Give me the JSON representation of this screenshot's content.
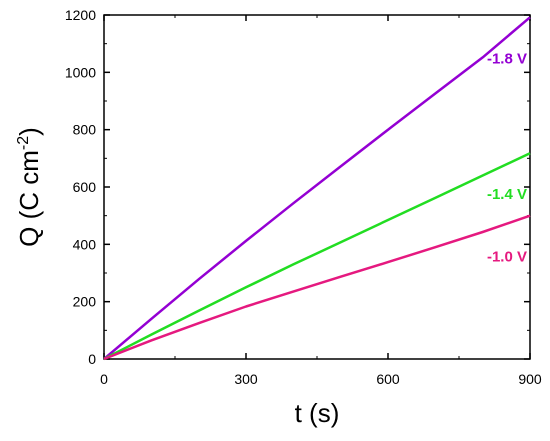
{
  "chart_data": {
    "type": "line",
    "xlabel": "t (s)",
    "ylabel_main": "Q (C cm",
    "ylabel_sup": "-2",
    "ylabel_close": ")",
    "xlim": [
      0,
      900
    ],
    "ylim": [
      0,
      1200
    ],
    "xticks": [
      "0",
      "300",
      "600",
      "900"
    ],
    "yticks": [
      "0",
      "200",
      "400",
      "600",
      "800",
      "1000",
      "1200"
    ],
    "grid": false,
    "series": [
      {
        "name": "-1.8 V",
        "color": "#9400D3",
        "x": [
          0,
          100,
          200,
          300,
          400,
          500,
          600,
          700,
          800,
          900
        ],
        "y": [
          0,
          140,
          278,
          412,
          543,
          672,
          800,
          926,
          1052,
          1192
        ]
      },
      {
        "name": "-1.4 V",
        "color": "#22DD22",
        "x": [
          0,
          100,
          200,
          300,
          400,
          500,
          600,
          700,
          800,
          900
        ],
        "y": [
          0,
          85,
          168,
          250,
          330,
          407,
          485,
          562,
          640,
          718
        ]
      },
      {
        "name": "-1.0 V",
        "color": "#E5197F",
        "x": [
          0,
          100,
          200,
          300,
          400,
          500,
          600,
          700,
          800,
          900
        ],
        "y": [
          0,
          65,
          125,
          183,
          235,
          287,
          338,
          390,
          443,
          500
        ]
      }
    ]
  }
}
